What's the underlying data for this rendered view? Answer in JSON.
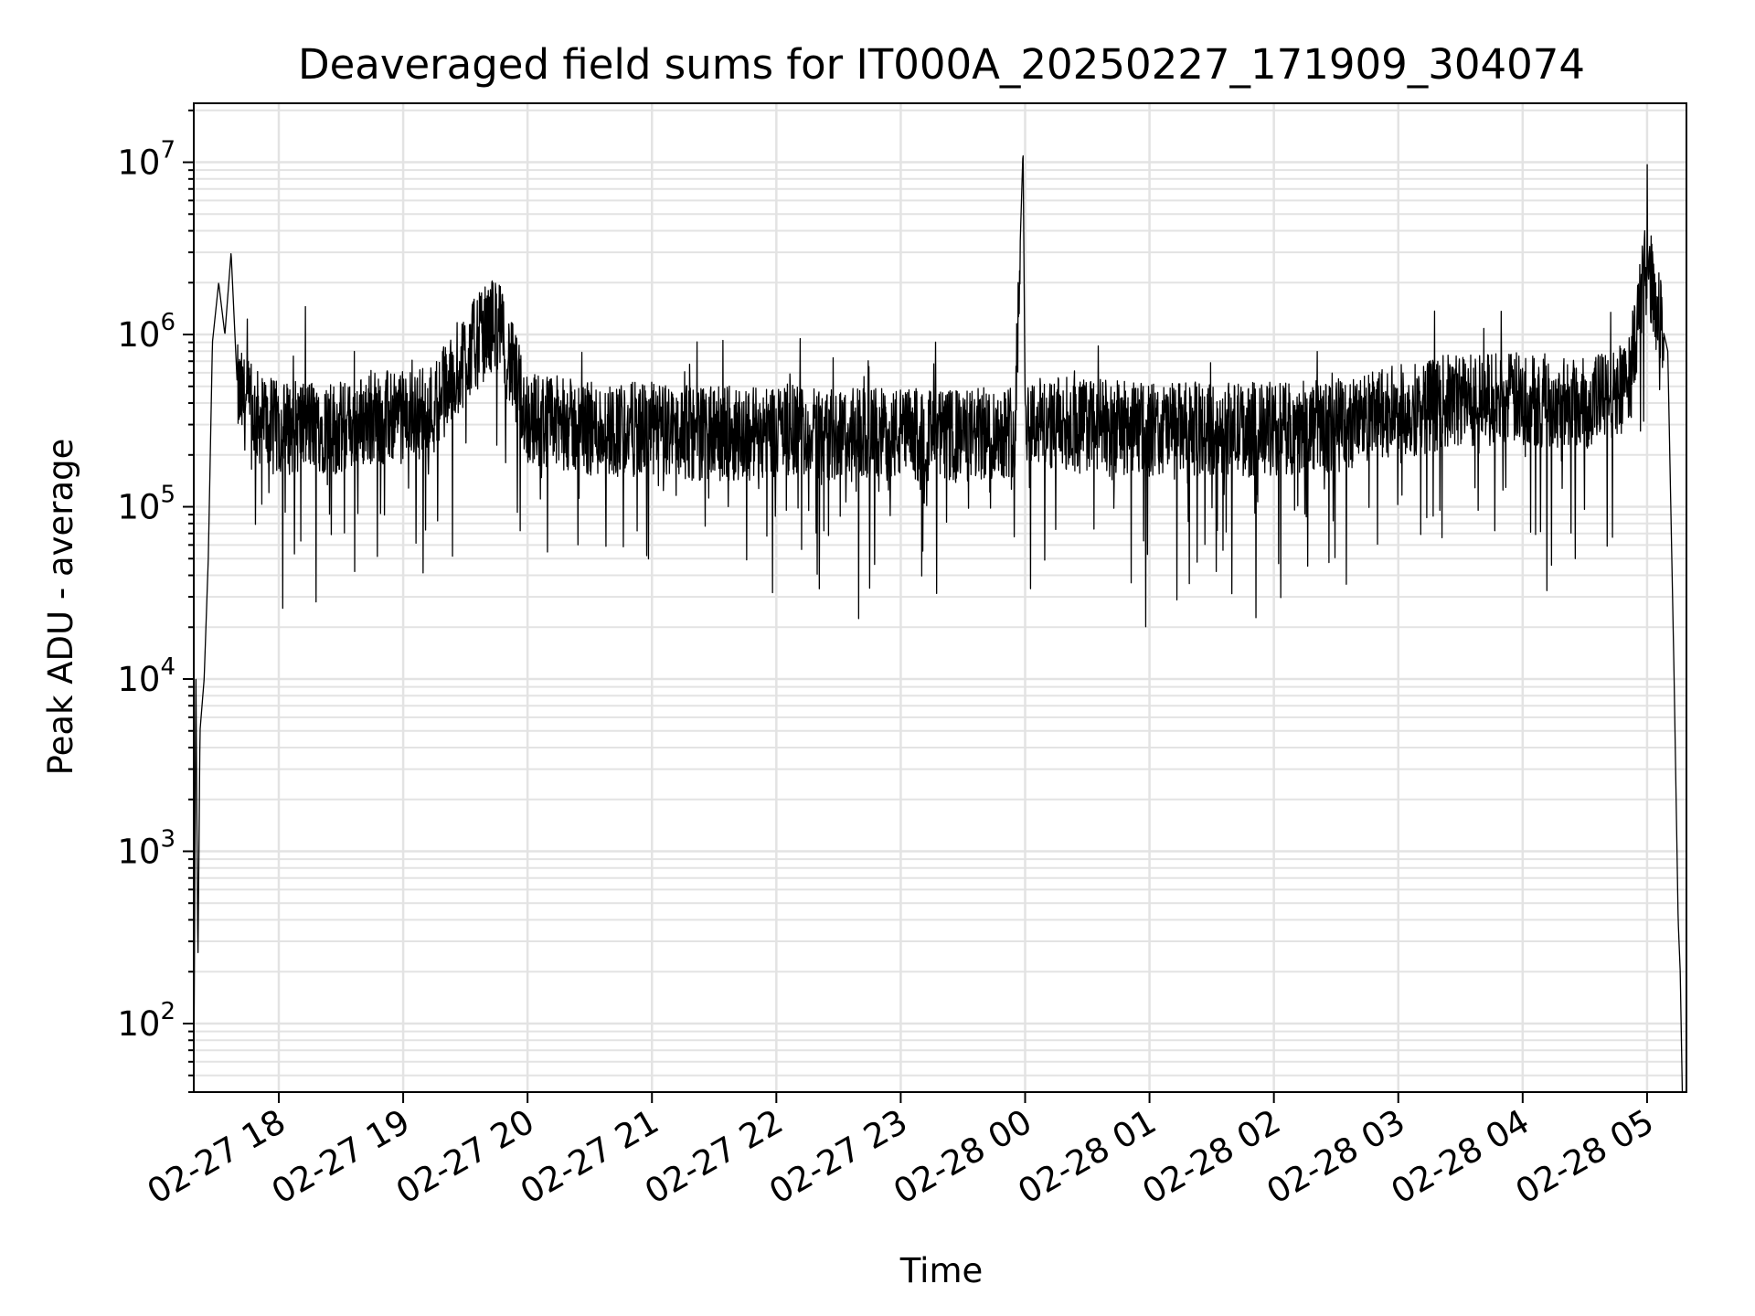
{
  "chart_data": {
    "type": "line",
    "title": "Deaveraged field sums for IT000A_20250227_171909_304074",
    "xlabel": "Time",
    "ylabel": "Peak ADU - average",
    "yscale": "log",
    "grid": true,
    "line_color": "#000000",
    "grid_color": "#e3e3e3",
    "xlim": [
      "2025-02-27 17:19",
      "2025-02-28 05:19"
    ],
    "ylim": [
      40,
      22000000
    ],
    "x_ticks": [
      "02-27 18",
      "02-27 19",
      "02-27 20",
      "02-27 21",
      "02-27 22",
      "02-27 23",
      "02-28 00",
      "02-28 01",
      "02-28 02",
      "02-28 03",
      "02-28 04",
      "02-28 05"
    ],
    "y_ticks": [
      {
        "base": "10",
        "exp": "2",
        "value": 100
      },
      {
        "base": "10",
        "exp": "3",
        "value": 1000
      },
      {
        "base": "10",
        "exp": "4",
        "value": 10000
      },
      {
        "base": "10",
        "exp": "5",
        "value": 100000
      },
      {
        "base": "10",
        "exp": "6",
        "value": 1000000
      },
      {
        "base": "10",
        "exp": "7",
        "value": 10000000
      }
    ],
    "series": [
      {
        "x": [
          "2025-02-27 17:19",
          "2025-02-27 17:20",
          "2025-02-27 17:21",
          "2025-02-27 17:22",
          "2025-02-27 17:24",
          "2025-02-27 17:26",
          "2025-02-27 17:28",
          "2025-02-27 17:31",
          "2025-02-27 17:34",
          "2025-02-27 17:37",
          "2025-02-27 17:40",
          "2025-02-27 17:45",
          "2025-02-27 17:50",
          "2025-02-27 18:00",
          "2025-02-27 18:15",
          "2025-02-27 18:30",
          "2025-02-27 18:45",
          "2025-02-27 19:00",
          "2025-02-27 19:15",
          "2025-02-27 19:30",
          "2025-02-27 19:45",
          "2025-02-27 20:00",
          "2025-02-27 20:30",
          "2025-02-27 21:00",
          "2025-02-27 21:30",
          "2025-02-27 22:00",
          "2025-02-27 22:30",
          "2025-02-27 23:00",
          "2025-02-27 23:30",
          "2025-02-27 23:55",
          "2025-02-27 23:59",
          "2025-02-28 00:00",
          "2025-02-28 00:01",
          "2025-02-28 00:05",
          "2025-02-28 00:30",
          "2025-02-28 01:00",
          "2025-02-28 01:30",
          "2025-02-28 02:00",
          "2025-02-28 02:30",
          "2025-02-28 03:00",
          "2025-02-28 03:30",
          "2025-02-28 04:00",
          "2025-02-28 04:30",
          "2025-02-28 04:50",
          "2025-02-28 05:00",
          "2025-02-28 05:05",
          "2025-02-28 05:10",
          "2025-02-28 05:13",
          "2025-02-28 05:15",
          "2025-02-28 05:16",
          "2025-02-28 05:17"
        ],
        "y": [
          40,
          11000,
          220,
          5000,
          10000,
          50000,
          900000,
          2000000,
          1000000,
          3000000,
          500000,
          400000,
          350000,
          300000,
          320000,
          300000,
          350000,
          350000,
          400000,
          800000,
          1300000,
          350000,
          300000,
          300000,
          280000,
          300000,
          280000,
          280000,
          270000,
          300000,
          12000000,
          400000,
          350000,
          330000,
          320000,
          300000,
          300000,
          300000,
          320000,
          380000,
          450000,
          450000,
          420000,
          500000,
          2800000,
          1500000,
          800000,
          11000,
          400,
          200,
          40
        ]
      }
    ]
  }
}
